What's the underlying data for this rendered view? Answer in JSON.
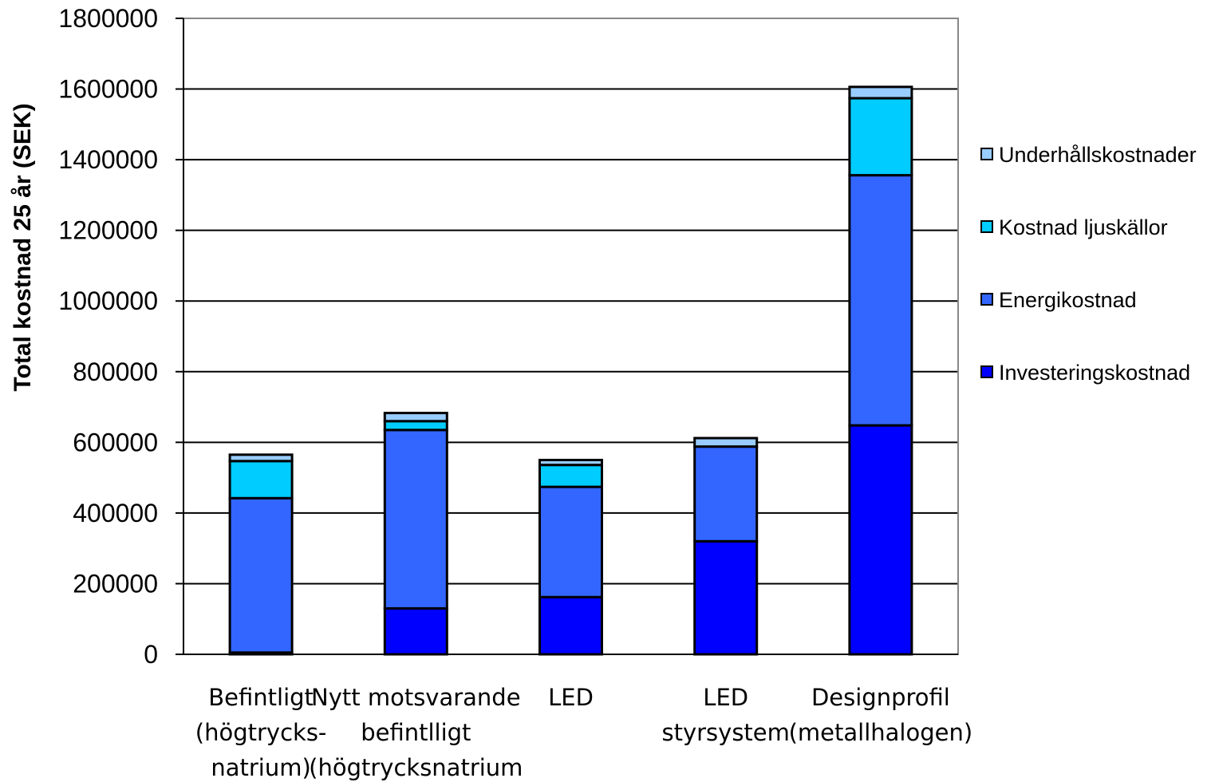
{
  "chart_data": {
    "type": "bar",
    "stacked": true,
    "ylabel": "Total kostnad 25 år (SEK)",
    "xlabel": "",
    "ylim": [
      0,
      1800000
    ],
    "yticks": [
      0,
      200000,
      400000,
      600000,
      800000,
      1000000,
      1200000,
      1400000,
      1600000,
      1800000
    ],
    "grid": true,
    "legend_position": "right",
    "categories": [
      [
        "Befintligt",
        "(högtrycks-",
        "natrium)"
      ],
      [
        "Nytt motsvarande",
        "befintlligt",
        "(högtrycksnatrium"
      ],
      [
        "LED"
      ],
      [
        "LED",
        "styrsystem"
      ],
      [
        "Designprofil",
        "(metallhalogen)"
      ]
    ],
    "series": [
      {
        "name": "Investeringskostnad",
        "color": "#0000ff",
        "values": [
          5000,
          130000,
          162000,
          320000,
          648000
        ]
      },
      {
        "name": "Energikostnad",
        "color": "#3366ff",
        "values": [
          437000,
          505000,
          312000,
          268000,
          708000
        ]
      },
      {
        "name": "Kostnad ljuskällor",
        "color": "#00ccff",
        "values": [
          105000,
          25000,
          62000,
          0,
          218000
        ]
      },
      {
        "name": "Underhållskostnader",
        "color": "#99ccff",
        "values": [
          18000,
          23000,
          14000,
          24000,
          32000
        ]
      }
    ],
    "legend_order": [
      "Underhållskostnader",
      "Kostnad ljuskällor",
      "Energikostnad",
      "Investeringskostnad"
    ]
  }
}
